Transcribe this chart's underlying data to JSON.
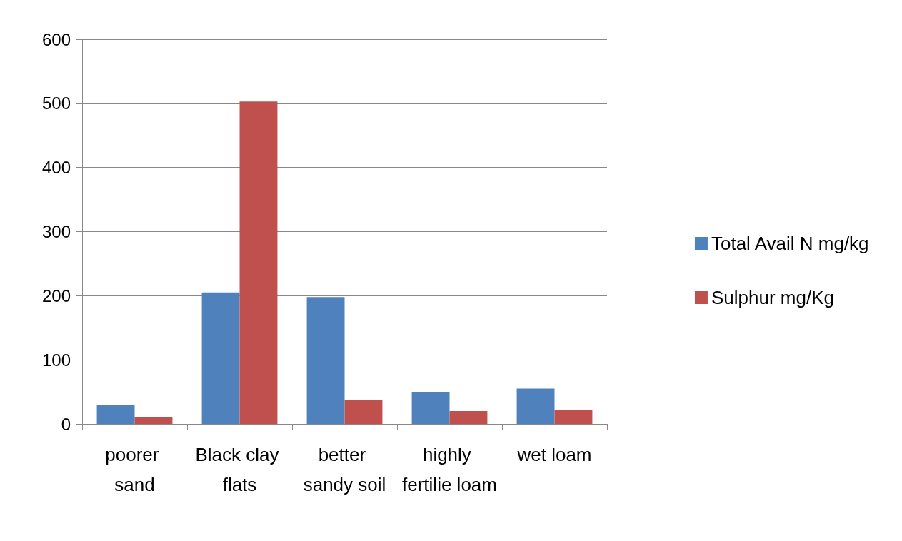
{
  "chart_data": {
    "type": "bar",
    "categories": [
      "poorer sand",
      "Black clay flats",
      "better sandy soil",
      "highly fertilie loam",
      "wet loam"
    ],
    "series": [
      {
        "name": "Total Avail N mg/kg",
        "color": "#4f81bd",
        "values": [
          29,
          205,
          198,
          50,
          55
        ]
      },
      {
        "name": "Sulphur mg/Kg",
        "color": "#c0504d",
        "values": [
          11,
          503,
          37,
          20,
          22
        ]
      }
    ],
    "ylim": [
      0,
      600
    ],
    "yticks": [
      0,
      100,
      200,
      300,
      400,
      500,
      600
    ],
    "grid": "y",
    "legend": "right"
  }
}
